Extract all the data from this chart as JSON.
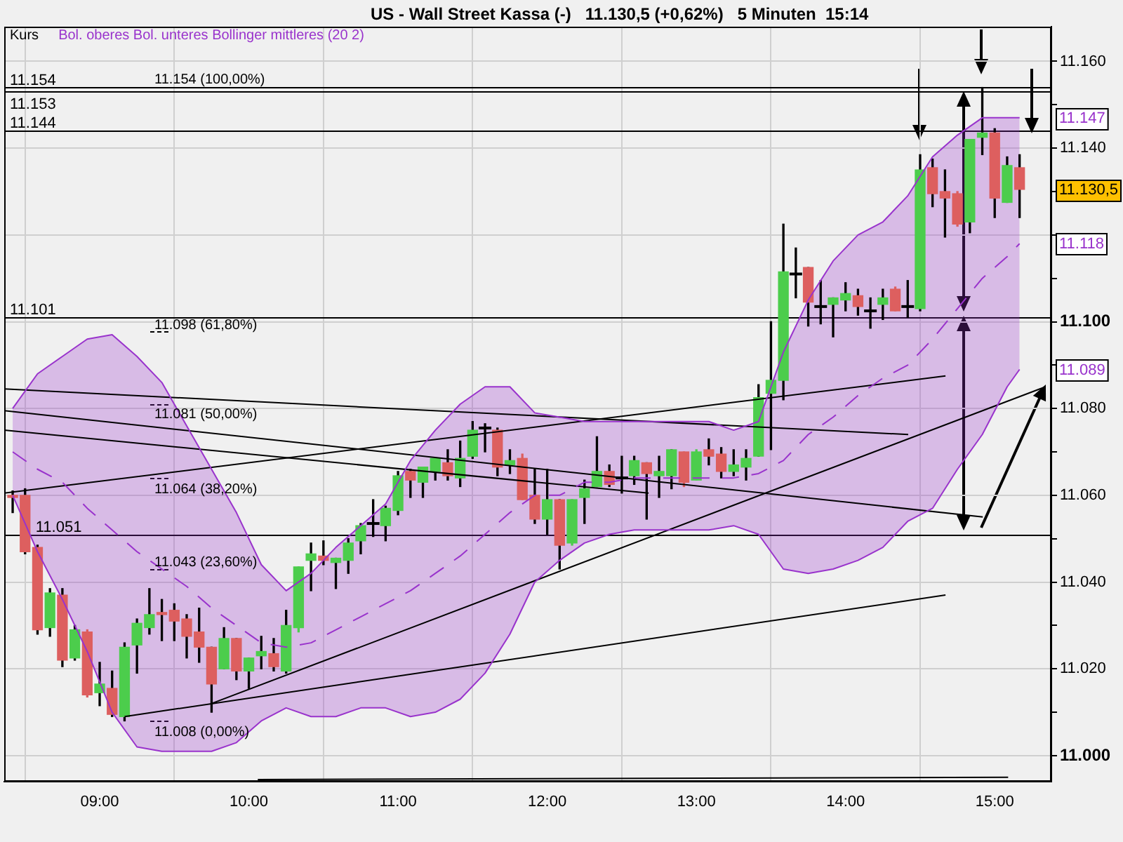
{
  "chart_data": {
    "type": "candlestick",
    "title": "US - Wall Street Kassa (-)   11.130,5 (+0,62%)   5 Minuten  15:14",
    "legend_title": "Kurs",
    "x": [
      8.4167,
      8.5,
      8.5833,
      8.6667,
      8.75,
      8.8333,
      8.9167,
      9,
      9.0833,
      9.1667,
      9.25,
      9.3333,
      9.4167,
      9.5,
      9.5833,
      9.6667,
      9.75,
      9.8333,
      9.9167,
      10,
      10.0833,
      10.1667,
      10.25,
      10.3333,
      10.4167,
      10.5,
      10.5833,
      10.6667,
      10.75,
      10.8333,
      10.9167,
      11,
      11.0833,
      11.1667,
      11.25,
      11.3333,
      11.4167,
      11.5,
      11.5833,
      11.6667,
      11.75,
      11.8333,
      11.9167,
      12,
      12.0833,
      12.1667,
      12.25,
      12.3333,
      12.4167,
      12.5,
      12.5833,
      12.6667,
      12.75,
      12.8333,
      12.9167,
      13,
      13.0833,
      13.1667,
      13.25,
      13.3333,
      13.4167,
      13.5,
      13.5833,
      13.6667,
      13.75,
      13.8333,
      13.9167,
      14,
      14.0833,
      14.1667,
      14.25,
      14.3333,
      14.4167,
      14.5,
      14.5833,
      14.6667,
      14.75,
      14.8333,
      14.9167,
      15,
      15.0833,
      15.1667
    ],
    "xlim": [
      8.36,
      15.38
    ],
    "xticks": [
      {
        "value": 9,
        "label": "09:00"
      },
      {
        "value": 10,
        "label": "10:00"
      },
      {
        "value": 11,
        "label": "11:00"
      },
      {
        "value": 12,
        "label": "12:00"
      },
      {
        "value": 13,
        "label": "13:00"
      },
      {
        "value": 14,
        "label": "14:00"
      },
      {
        "value": 15,
        "label": "15:00"
      }
    ],
    "ylim": [
      10994,
      11168
    ],
    "yticks": [
      {
        "value": 11000,
        "label": "11.000"
      },
      {
        "value": 11010,
        "label": null
      },
      {
        "value": 11020,
        "label": "11.020"
      },
      {
        "value": 11030,
        "label": null
      },
      {
        "value": 11040,
        "label": "11.040"
      },
      {
        "value": 11050,
        "label": null
      },
      {
        "value": 11060,
        "label": "11.060"
      },
      {
        "value": 11070,
        "label": null
      },
      {
        "value": 11080,
        "label": "11.080"
      },
      {
        "value": 11090,
        "label": null
      },
      {
        "value": 11100,
        "label": "11.100"
      },
      {
        "value": 11110,
        "label": null
      },
      {
        "value": 11120,
        "label": null
      },
      {
        "value": 11130,
        "label": null
      },
      {
        "value": 11140,
        "label": "11.140"
      },
      {
        "value": 11150,
        "label": null
      },
      {
        "value": 11160,
        "label": "11.160"
      }
    ],
    "grid": true,
    "legend": "top left",
    "series": [
      {
        "color": "#000000",
        "colors": [
          "#dd5f5f",
          "#dd5f5f",
          "#dd5f5f",
          "#4ccd4c",
          "#dd5f5f",
          "#4ccd4c",
          "#dd5f5f",
          "#4ccd4c",
          "#dd5f5f",
          "#4ccd4c",
          "#4ccd4c",
          "#4ccd4c",
          "#dd5f5f",
          "#dd5f5f",
          "#dd5f5f",
          "#dd5f5f",
          "#dd5f5f",
          "#4ccd4c",
          "#dd5f5f",
          "#4ccd4c",
          "#4ccd4c",
          "#dd5f5f",
          "#4ccd4c",
          "#4ccd4c",
          "#4ccd4c",
          "#dd5f5f",
          "#4ccd4c",
          "#4ccd4c",
          "#4ccd4c",
          "#000000",
          "#4ccd4c",
          "#4ccd4c",
          "#dd5f5f",
          "#4ccd4c",
          "#4ccd4c",
          "#dd5f5f",
          "#4ccd4c",
          "#4ccd4c",
          "#000000",
          "#dd5f5f",
          "#4ccd4c",
          "#dd5f5f",
          "#dd5f5f",
          "#4ccd4c",
          "#dd5f5f",
          "#4ccd4c",
          "#4ccd4c",
          "#4ccd4c",
          "#dd5f5f",
          "#000000",
          "#4ccd4c",
          "#dd5f5f",
          "#4ccd4c",
          "#4ccd4c",
          "#dd5f5f",
          "#4ccd4c",
          "#dd5f5f",
          "#dd5f5f",
          "#4ccd4c",
          "#4ccd4c",
          "#4ccd4c",
          "#4ccd4c",
          "#4ccd4c",
          "#000000",
          "#dd5f5f",
          "#000000",
          "#4ccd4c",
          "#4ccd4c",
          "#dd5f5f",
          "#000000",
          "#4ccd4c",
          "#dd5f5f",
          "#000000",
          "#4ccd4c",
          "#dd5f5f",
          "#dd5f5f",
          "#dd5f5f",
          "#4ccd4c",
          "#4ccd4c",
          "#dd5f5f",
          "#4ccd4c",
          "#dd5f5f"
        ],
        "ohlc": [
          [
            11060,
            11061,
            11056,
            11059.5
          ],
          [
            11060,
            11061.5,
            11046.5,
            11047
          ],
          [
            11048,
            11048.5,
            11028,
            11029
          ],
          [
            11029.5,
            11038.5,
            11027.5,
            11037.5
          ],
          [
            11037,
            11038.5,
            11020.5,
            11022
          ],
          [
            11022.5,
            11030,
            11022,
            11029
          ],
          [
            11028.5,
            11029,
            11013.5,
            11014
          ],
          [
            11014.5,
            11021.5,
            11011.5,
            11016.5
          ],
          [
            11015.5,
            11019.5,
            11009,
            11009.5
          ],
          [
            11009,
            11026,
            11008,
            11025
          ],
          [
            11025.5,
            11031.5,
            11019,
            11030.5
          ],
          [
            11029.5,
            11038.5,
            11028,
            11032.5
          ],
          [
            11033,
            11036,
            11026.5,
            11032.5
          ],
          [
            11033.5,
            11035,
            11026.5,
            11031
          ],
          [
            11031.5,
            11032.5,
            11022.5,
            11027.5
          ],
          [
            11028.5,
            11034,
            11021.5,
            11025
          ],
          [
            11025,
            11025,
            11010,
            11016.5
          ],
          [
            11020,
            11029.5,
            11020,
            11027
          ],
          [
            11027,
            11027,
            11017.5,
            11019.5
          ],
          [
            11019.5,
            11022.5,
            11015.5,
            11022.5
          ],
          [
            11023,
            11027.5,
            11020,
            11024
          ],
          [
            11023.5,
            11027,
            11019.5,
            11020.5
          ],
          [
            11019.5,
            11033.5,
            11019,
            11030
          ],
          [
            11029.5,
            11043.5,
            11028.5,
            11043.5
          ],
          [
            11045,
            11049,
            11038,
            11046.5
          ],
          [
            11046,
            11049.5,
            11044,
            11045
          ],
          [
            11044.5,
            11045.5,
            11038.5,
            11045.5
          ],
          [
            11045,
            11050,
            11042,
            11049
          ],
          [
            11049.5,
            11053.5,
            11046.5,
            11053
          ],
          [
            11053.5,
            11059,
            11050.5,
            11053.5
          ],
          [
            11053,
            11057.5,
            11049.5,
            11057
          ],
          [
            11056.5,
            11065.5,
            11055.5,
            11064.5
          ],
          [
            11065.5,
            11066,
            11059.5,
            11063.5
          ],
          [
            11063,
            11066.5,
            11059.5,
            11066.5
          ],
          [
            11065.5,
            11068.5,
            11063.5,
            11068.5
          ],
          [
            11067.5,
            11070.5,
            11063.5,
            11064.5
          ],
          [
            11064,
            11072.5,
            11062,
            11068.5
          ],
          [
            11069,
            11077,
            11068.5,
            11075
          ],
          [
            11075.5,
            11076.5,
            11070,
            11075.5
          ],
          [
            11075,
            11075.5,
            11064.5,
            11066.5
          ],
          [
            11067,
            11070.5,
            11065,
            11068
          ],
          [
            11068.5,
            11069.5,
            11059,
            11059
          ],
          [
            11060,
            11066,
            11053.5,
            11054.5
          ],
          [
            11054.5,
            11066,
            11051,
            11059
          ],
          [
            11059,
            11059,
            11043,
            11048.5
          ],
          [
            11049,
            11059,
            11048.5,
            11059
          ],
          [
            11059.5,
            11063.5,
            11053.5,
            11061.5
          ],
          [
            11062,
            11073.5,
            11062,
            11065.5
          ],
          [
            11065.5,
            11067,
            11062,
            11062.5
          ],
          [
            11064,
            11069,
            11060.5,
            11064
          ],
          [
            11064.5,
            11069,
            11062.5,
            11068
          ],
          [
            11067.5,
            11067.5,
            11054.5,
            11065
          ],
          [
            11064.5,
            11069,
            11059.5,
            11065.5
          ],
          [
            11064.5,
            11070.5,
            11061.5,
            11070.5
          ],
          [
            11070,
            11070,
            11062,
            11063
          ],
          [
            11063.5,
            11070.5,
            11063.5,
            11070
          ],
          [
            11070.5,
            11073,
            11067,
            11069
          ],
          [
            11069.5,
            11071,
            11064,
            11065.5
          ],
          [
            11065.5,
            11070.5,
            11064.5,
            11067
          ],
          [
            11066.5,
            11070.5,
            11063.5,
            11068.5
          ],
          [
            11069,
            11085.5,
            11069,
            11082.5
          ],
          [
            11083.5,
            11100,
            11070.5,
            11086.5
          ],
          [
            11086.5,
            11122.5,
            11082,
            11111.5
          ],
          [
            11111,
            11117,
            11105.5,
            11111
          ],
          [
            11112.5,
            11112.5,
            11099,
            11104.5
          ],
          [
            11103.5,
            11109.5,
            11099.5,
            11103.5
          ],
          [
            11104,
            11105.5,
            11096.5,
            11105.5
          ],
          [
            11105,
            11109,
            11102.5,
            11106.5
          ],
          [
            11106,
            11107.5,
            11101.5,
            11103.5
          ],
          [
            11102.5,
            11105.5,
            11098.5,
            11102.5
          ],
          [
            11104,
            11107.5,
            11100.5,
            11105.5
          ],
          [
            11107.5,
            11108,
            11102.5,
            11102.5
          ],
          [
            11103.5,
            11109.5,
            11101,
            11103.5
          ],
          [
            11103,
            11138.5,
            11102.5,
            11135
          ],
          [
            11135.5,
            11137.5,
            11126.5,
            11129.5
          ],
          [
            11130,
            11135,
            11119.5,
            11128.5
          ],
          [
            11129.5,
            11130,
            11122,
            11122.5
          ],
          [
            11123,
            11142,
            11120.5,
            11142
          ],
          [
            11142.5,
            11154,
            11138.5,
            11143.5
          ],
          [
            11143.5,
            11144.5,
            11124,
            11128.5
          ],
          [
            11127.5,
            11138,
            11127.5,
            11136
          ],
          [
            11135.5,
            11138.5,
            11124,
            11130.5
          ]
        ]
      },
      {
        "type": "line",
        "color": "#9933cc",
        "x": [
          8.4167,
          8.5833,
          8.75,
          8.9167,
          9.0833,
          9.25,
          9.4167,
          9.5833,
          9.75,
          9.9167,
          10.0833,
          10.25,
          10.4167,
          10.5833,
          10.75,
          10.9167,
          11.0833,
          11.25,
          11.4167,
          11.5833,
          11.75,
          11.9167,
          12.0833,
          12.25,
          12.4167,
          12.5833,
          12.75,
          12.9167,
          13.0833,
          13.25,
          13.4167,
          13.5833,
          13.75,
          13.9167,
          14.0833,
          14.25,
          14.4167,
          14.5833,
          14.75,
          14.9167,
          15.0833,
          15.1667
        ],
        "values": [
          11080,
          11088,
          11092,
          11096,
          11097,
          11092,
          11086,
          11076,
          11066,
          11056,
          11044,
          11038,
          11042,
          11048,
          11053,
          11058,
          11068,
          11075,
          11081,
          11085,
          11085,
          11079,
          11078,
          11077,
          11077,
          11077,
          11077,
          11077,
          11077,
          11075,
          11077,
          11093,
          11105,
          11114,
          11120,
          11123,
          11129,
          11138,
          11143,
          11147,
          11147,
          11147
        ]
      },
      {
        "type": "line",
        "color": "#9933cc",
        "x": [
          8.4167,
          8.5833,
          8.75,
          8.9167,
          9.0833,
          9.25,
          9.4167,
          9.5833,
          9.75,
          9.9167,
          10.0833,
          10.25,
          10.4167,
          10.5833,
          10.75,
          10.9167,
          11.0833,
          11.25,
          11.4167,
          11.5833,
          11.75,
          11.9167,
          12.0833,
          12.25,
          12.4167,
          12.5833,
          12.75,
          12.9167,
          13.0833,
          13.25,
          13.4167,
          13.5833,
          13.75,
          13.9167,
          14.0833,
          14.25,
          14.4167,
          14.5833,
          14.75,
          14.9167,
          15.0833,
          15.1667
        ],
        "values": [
          11060,
          11047,
          11036,
          11024,
          11010,
          11002,
          11001,
          11001,
          11001,
          11003,
          11008,
          11011,
          11009,
          11009,
          11011,
          11011,
          11009,
          11010,
          11013,
          11019,
          11028,
          11040,
          11045,
          11049,
          11051,
          11052,
          11052,
          11052,
          11052,
          11053,
          11051,
          11043,
          11042,
          11043,
          11045,
          11048,
          11054,
          11057,
          11066,
          11074,
          11085,
          11089
        ]
      },
      {
        "type": "line",
        "name": "Bol. oberes Bol. unteres Bollinger mittleres (20 2)",
        "color": "#9933cc",
        "line_style": "dashed",
        "x": [
          8.4167,
          8.5833,
          8.75,
          8.9167,
          9.0833,
          9.25,
          9.4167,
          9.5833,
          9.75,
          9.9167,
          10.0833,
          10.25,
          10.4167,
          10.5833,
          10.75,
          10.9167,
          11.0833,
          11.25,
          11.4167,
          11.5833,
          11.75,
          11.9167,
          12.0833,
          12.25,
          12.4167,
          12.5833,
          12.75,
          12.9167,
          13.0833,
          13.25,
          13.4167,
          13.5833,
          13.75,
          13.9167,
          14.0833,
          14.25,
          14.4167,
          14.5833,
          14.75,
          14.9167,
          15.0833,
          15.1667
        ],
        "values": [
          11070,
          11066,
          11063,
          11057,
          11052,
          11047,
          11043,
          11039,
          11034,
          11030,
          11026,
          11025,
          11026,
          11029,
          11032,
          11035,
          11038,
          11042,
          11046,
          11051,
          11056,
          11060,
          11060,
          11063,
          11063,
          11064,
          11064,
          11064,
          11064,
          11064,
          11065,
          11068,
          11074,
          11078,
          11083,
          11087,
          11090,
          11096,
          11103,
          11110,
          11115,
          11118
        ],
        "lower": [
          11060,
          11047,
          11036,
          11024,
          11010,
          11002,
          11001,
          11001,
          11001,
          11003,
          11008,
          11011,
          11009,
          11009,
          11011,
          11011,
          11009,
          11010,
          11013,
          11019,
          11028,
          11040,
          11045,
          11049,
          11051,
          11052,
          11052,
          11052,
          11052,
          11053,
          11051,
          11043,
          11042,
          11043,
          11045,
          11048,
          11054,
          11057,
          11066,
          11074,
          11085,
          11089
        ],
        "upper": [
          11080,
          11088,
          11092,
          11096,
          11097,
          11092,
          11086,
          11076,
          11066,
          11056,
          11044,
          11038,
          11042,
          11048,
          11053,
          11058,
          11068,
          11075,
          11081,
          11085,
          11085,
          11079,
          11078,
          11077,
          11077,
          11077,
          11077,
          11077,
          11077,
          11075,
          11077,
          11093,
          11105,
          11114,
          11120,
          11123,
          11129,
          11138,
          11143,
          11147,
          11147,
          11147
        ]
      },
      {
        "type": "line",
        "color": "#000000",
        "x": [
          8.36,
          14.42
        ],
        "values": [
          11084.5,
          11074
        ]
      },
      {
        "type": "line",
        "color": "#000000",
        "x": [
          8.36,
          14.92
        ],
        "values": [
          11079.5,
          11055
        ]
      },
      {
        "type": "line",
        "color": "#000000",
        "x": [
          8.36,
          12.68
        ],
        "values": [
          11075,
          11060.5
        ]
      },
      {
        "type": "line",
        "color": "#000000",
        "x": [
          8.36,
          14.67
        ],
        "values": [
          11060.5,
          11087.5
        ]
      },
      {
        "type": "line",
        "color": "#000000",
        "x": [
          9.75,
          15.34
        ],
        "values": [
          11012,
          11085
        ]
      },
      {
        "type": "line",
        "color": "#000000",
        "x": [
          9.1667,
          14.67
        ],
        "values": [
          11009,
          11037
        ]
      },
      {
        "type": "line",
        "color": "#000000",
        "x": [
          10.06,
          15.09
        ],
        "values": [
          10994.5,
          10995
        ]
      }
    ],
    "ref_lines": [
      {
        "axis": "y",
        "value": 11154,
        "label": "11.154"
      },
      {
        "axis": "y",
        "value": 11153,
        "label": "11.153"
      },
      {
        "axis": "y",
        "value": 11144,
        "label": "11.144"
      },
      {
        "axis": "y",
        "value": 11101,
        "label": "11.101"
      },
      {
        "axis": "y",
        "value": 11051,
        "label": "11.051"
      }
    ],
    "annotations": [
      "11.154 (100,00%)",
      "11.098 (61,80%)",
      "11.081 (50,00%)",
      "11.064 (38,20%)",
      "11.043 (23,60%)",
      "11.008 (0,00%)",
      "11.147",
      "11.130,5",
      "11.118",
      "11.089"
    ]
  }
}
